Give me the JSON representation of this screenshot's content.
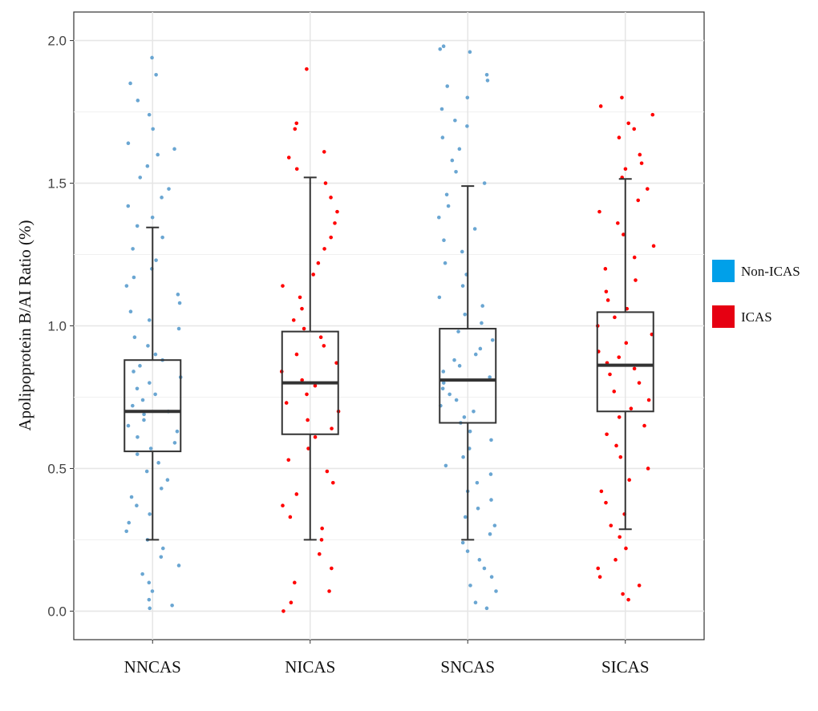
{
  "chart_data": {
    "type": "box",
    "title": "",
    "xlabel": "",
    "ylabel": "Apolipoprotein B/AI Ratio (%)",
    "ylim": [
      -0.1,
      2.1
    ],
    "yticks": [
      "0.0",
      "0.5",
      "1.0",
      "1.5",
      "2.0"
    ],
    "grid": true,
    "legend": {
      "placement": "right",
      "entries": [
        {
          "label": "Non-ICAS",
          "color": "#00a0e9"
        },
        {
          "label": "ICAS",
          "color": "#e60012"
        }
      ]
    },
    "categories": [
      "NNCAS",
      "NICAS",
      "SNCAS",
      "SICAS"
    ],
    "groups": [
      {
        "category": "NNCAS",
        "legend": "Non-ICAS",
        "point_color": "#6aa6d2",
        "whisker_low": 0.25,
        "q1": 0.56,
        "median": 0.7,
        "q3": 0.88,
        "whisker_high": 1.345,
        "points": [
          1.94,
          1.88,
          1.85,
          1.79,
          1.74,
          1.69,
          1.64,
          1.62,
          1.6,
          1.56,
          1.52,
          1.48,
          1.45,
          1.42,
          1.38,
          1.35,
          1.31,
          1.27,
          1.23,
          1.2,
          1.17,
          1.14,
          1.11,
          1.08,
          1.05,
          1.02,
          0.99,
          0.96,
          0.93,
          0.9,
          0.88,
          0.86,
          0.84,
          0.82,
          0.8,
          0.78,
          0.76,
          0.74,
          0.72,
          0.7,
          0.69,
          0.67,
          0.65,
          0.63,
          0.61,
          0.59,
          0.57,
          0.55,
          0.52,
          0.49,
          0.46,
          0.43,
          0.4,
          0.37,
          0.34,
          0.31,
          0.28,
          0.25,
          0.22,
          0.19,
          0.16,
          0.13,
          0.1,
          0.07,
          0.04,
          0.02,
          0.01
        ]
      },
      {
        "category": "NICAS",
        "legend": "ICAS",
        "point_color": "#ff0000",
        "whisker_low": 0.25,
        "q1": 0.62,
        "median": 0.8,
        "q3": 0.98,
        "whisker_high": 1.52,
        "points": [
          1.9,
          1.71,
          1.69,
          1.61,
          1.59,
          1.55,
          1.5,
          1.45,
          1.4,
          1.36,
          1.31,
          1.27,
          1.22,
          1.18,
          1.14,
          1.1,
          1.06,
          1.02,
          0.99,
          0.96,
          0.93,
          0.9,
          0.87,
          0.84,
          0.81,
          0.79,
          0.76,
          0.73,
          0.7,
          0.67,
          0.64,
          0.61,
          0.57,
          0.53,
          0.49,
          0.45,
          0.41,
          0.37,
          0.33,
          0.29,
          0.25,
          0.2,
          0.15,
          0.1,
          0.07,
          0.03,
          0.0
        ]
      },
      {
        "category": "SNCAS",
        "legend": "Non-ICAS",
        "point_color": "#6aa6d2",
        "whisker_low": 0.25,
        "q1": 0.66,
        "median": 0.81,
        "q3": 0.99,
        "whisker_high": 1.49,
        "points": [
          1.98,
          1.97,
          1.96,
          1.88,
          1.86,
          1.84,
          1.8,
          1.76,
          1.72,
          1.7,
          1.66,
          1.62,
          1.58,
          1.54,
          1.5,
          1.46,
          1.42,
          1.38,
          1.34,
          1.3,
          1.26,
          1.22,
          1.18,
          1.14,
          1.1,
          1.07,
          1.04,
          1.01,
          0.98,
          0.95,
          0.92,
          0.9,
          0.88,
          0.86,
          0.84,
          0.82,
          0.8,
          0.78,
          0.76,
          0.74,
          0.72,
          0.7,
          0.68,
          0.66,
          0.63,
          0.6,
          0.57,
          0.54,
          0.51,
          0.48,
          0.45,
          0.42,
          0.39,
          0.36,
          0.33,
          0.3,
          0.27,
          0.24,
          0.21,
          0.18,
          0.15,
          0.12,
          0.09,
          0.07,
          0.03,
          0.01
        ]
      },
      {
        "category": "SICAS",
        "legend": "ICAS",
        "point_color": "#ff0000",
        "whisker_low": 0.287,
        "q1": 0.7,
        "median": 0.862,
        "q3": 1.048,
        "whisker_high": 1.515,
        "points": [
          1.8,
          1.77,
          1.74,
          1.71,
          1.69,
          1.66,
          1.6,
          1.57,
          1.55,
          1.52,
          1.48,
          1.44,
          1.4,
          1.36,
          1.32,
          1.28,
          1.24,
          1.2,
          1.16,
          1.12,
          1.09,
          1.06,
          1.03,
          1.0,
          0.97,
          0.94,
          0.91,
          0.89,
          0.87,
          0.85,
          0.83,
          0.8,
          0.77,
          0.74,
          0.71,
          0.68,
          0.65,
          0.62,
          0.58,
          0.54,
          0.5,
          0.46,
          0.42,
          0.38,
          0.34,
          0.3,
          0.26,
          0.22,
          0.18,
          0.15,
          0.12,
          0.09,
          0.06,
          0.04
        ]
      }
    ]
  }
}
